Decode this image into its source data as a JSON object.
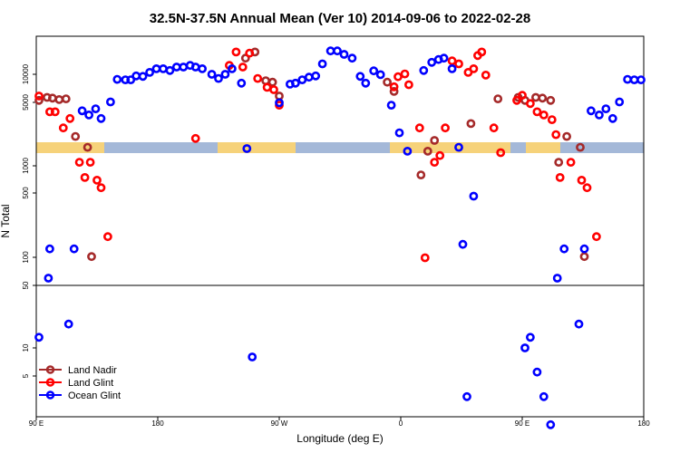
{
  "chart_data": {
    "type": "scatter",
    "title": "32.5N-37.5N Annual Mean (Ver 10)   2014-09-06 to 2022-02-28",
    "xlabel": "Longitude (deg E)",
    "ylabel": "N Total",
    "x_ticks": [
      {
        "lon": 90,
        "label": "90 E"
      },
      {
        "lon": 180,
        "label": "180"
      },
      {
        "lon": 270,
        "label": "90 W"
      },
      {
        "lon": 360,
        "label": "0"
      },
      {
        "lon": 450,
        "label": "90 E"
      },
      {
        "lon": 540,
        "label": "180"
      }
    ],
    "xlim_deg_east_unwrapped": [
      90,
      540
    ],
    "upper_panel": {
      "scale": "log",
      "ylim": [
        50,
        30000
      ],
      "y_ticks": [
        {
          "v": 50,
          "label": "50"
        },
        {
          "v": 100,
          "label": "100"
        },
        {
          "v": 500,
          "label": "500"
        },
        {
          "v": 1000,
          "label": "1000"
        },
        {
          "v": 5000,
          "label": "5000"
        },
        {
          "v": 10000,
          "label": "10000"
        }
      ]
    },
    "lower_panel": {
      "scale": "log",
      "ylim": [
        2,
        50
      ],
      "y_ticks": [
        {
          "v": 5,
          "label": "5"
        },
        {
          "v": 10,
          "label": "10"
        }
      ]
    },
    "legend": {
      "position": "bottom-left",
      "entries": [
        {
          "name": "Land Nadir",
          "color": "#a52a2a"
        },
        {
          "name": "Land Glint",
          "color": "#ff0000"
        },
        {
          "name": "Ocean Glint",
          "color": "#0000ff"
        }
      ]
    },
    "series": [
      {
        "name": "Land Nadir",
        "color": "#a52a2a",
        "points": [
          [
            92,
            5200
          ],
          [
            98,
            5600
          ],
          [
            102,
            5500
          ],
          [
            107,
            5300
          ],
          [
            112,
            5400
          ],
          [
            119,
            2100
          ],
          [
            128,
            1600
          ],
          [
            131,
            103
          ],
          [
            245,
            15000
          ],
          [
            252,
            17500
          ],
          [
            260,
            8500
          ],
          [
            265,
            8200
          ],
          [
            270,
            5800
          ],
          [
            350,
            8200
          ],
          [
            355,
            6500
          ],
          [
            375,
            800
          ],
          [
            380,
            1450
          ],
          [
            385,
            1900
          ],
          [
            412,
            2900
          ],
          [
            432,
            5400
          ],
          [
            447,
            5600
          ],
          [
            452,
            5200
          ],
          [
            460,
            5600
          ],
          [
            465,
            5500
          ],
          [
            471,
            5200
          ],
          [
            477,
            1100
          ],
          [
            483,
            2100
          ],
          [
            493,
            1600
          ],
          [
            496,
            103
          ]
        ]
      },
      {
        "name": "Land Glint",
        "color": "#ff0000",
        "points": [
          [
            92,
            5800
          ],
          [
            100,
            3900
          ],
          [
            104,
            3900
          ],
          [
            110,
            2600
          ],
          [
            115,
            3300
          ],
          [
            122,
            1100
          ],
          [
            126,
            750
          ],
          [
            130,
            1100
          ],
          [
            135,
            700
          ],
          [
            138,
            580
          ],
          [
            143,
            170
          ],
          [
            208,
            2000
          ],
          [
            233,
            12500
          ],
          [
            238,
            17500
          ],
          [
            243,
            12000
          ],
          [
            248,
            17000
          ],
          [
            254,
            9000
          ],
          [
            261,
            7200
          ],
          [
            266,
            6800
          ],
          [
            270,
            4600
          ],
          [
            355,
            7300
          ],
          [
            358,
            9400
          ],
          [
            363,
            10100
          ],
          [
            366,
            7700
          ],
          [
            374,
            2600
          ],
          [
            378,
            100
          ],
          [
            385,
            1100
          ],
          [
            389,
            1300
          ],
          [
            393,
            2600
          ],
          [
            398,
            14000
          ],
          [
            403,
            13000
          ],
          [
            410,
            10500
          ],
          [
            414,
            11500
          ],
          [
            417,
            16000
          ],
          [
            420,
            17500
          ],
          [
            423,
            9800
          ],
          [
            429,
            2600
          ],
          [
            434,
            1400
          ],
          [
            446,
            5200
          ],
          [
            450,
            5900
          ],
          [
            456,
            4800
          ],
          [
            461,
            3900
          ],
          [
            466,
            3600
          ],
          [
            472,
            3200
          ],
          [
            475,
            2200
          ],
          [
            478,
            750
          ],
          [
            486,
            1100
          ],
          [
            494,
            700
          ],
          [
            498,
            580
          ],
          [
            505,
            170
          ]
        ]
      },
      {
        "name": "Ocean Glint",
        "color": "#0000ff",
        "points": [
          [
            92,
            13
          ],
          [
            99,
            60
          ],
          [
            100,
            125
          ],
          [
            114,
            18
          ],
          [
            118,
            125
          ],
          [
            124,
            4000
          ],
          [
            129,
            3600
          ],
          [
            134,
            4200
          ],
          [
            138,
            3300
          ],
          [
            145,
            5000
          ],
          [
            150,
            8800
          ],
          [
            156,
            8700
          ],
          [
            160,
            8700
          ],
          [
            164,
            9600
          ],
          [
            169,
            9500
          ],
          [
            174,
            10500
          ],
          [
            179,
            11500
          ],
          [
            184,
            11500
          ],
          [
            189,
            11000
          ],
          [
            194,
            12000
          ],
          [
            199,
            12000
          ],
          [
            204,
            12500
          ],
          [
            208,
            12000
          ],
          [
            213,
            11500
          ],
          [
            220,
            10000
          ],
          [
            225,
            9000
          ],
          [
            230,
            10000
          ],
          [
            235,
            11500
          ],
          [
            242,
            8000
          ],
          [
            246,
            1550
          ],
          [
            250,
            8
          ],
          [
            270,
            4900
          ],
          [
            278,
            7800
          ],
          [
            282,
            8000
          ],
          [
            287,
            8700
          ],
          [
            292,
            9300
          ],
          [
            297,
            9600
          ],
          [
            302,
            13000
          ],
          [
            308,
            18000
          ],
          [
            313,
            18000
          ],
          [
            318,
            16500
          ],
          [
            324,
            15000
          ],
          [
            330,
            9500
          ],
          [
            334,
            8000
          ],
          [
            340,
            10900
          ],
          [
            345,
            9900
          ],
          [
            353,
            4600
          ],
          [
            359,
            2300
          ],
          [
            365,
            1450
          ],
          [
            377,
            11000
          ],
          [
            383,
            13500
          ],
          [
            388,
            14500
          ],
          [
            392,
            15000
          ],
          [
            398,
            11500
          ],
          [
            403,
            1600
          ],
          [
            406,
            140
          ],
          [
            409,
            3
          ],
          [
            414,
            470
          ],
          [
            452,
            10
          ],
          [
            456,
            13
          ],
          [
            461,
            5.5
          ],
          [
            466,
            3
          ],
          [
            471,
            1.5
          ],
          [
            476,
            60
          ],
          [
            481,
            125
          ],
          [
            492,
            18
          ],
          [
            496,
            125
          ],
          [
            501,
            4000
          ],
          [
            507,
            3600
          ],
          [
            512,
            4200
          ],
          [
            517,
            3300
          ],
          [
            522,
            5000
          ],
          [
            528,
            8800
          ],
          [
            533,
            8700
          ],
          [
            538,
            8700
          ]
        ]
      }
    ]
  }
}
